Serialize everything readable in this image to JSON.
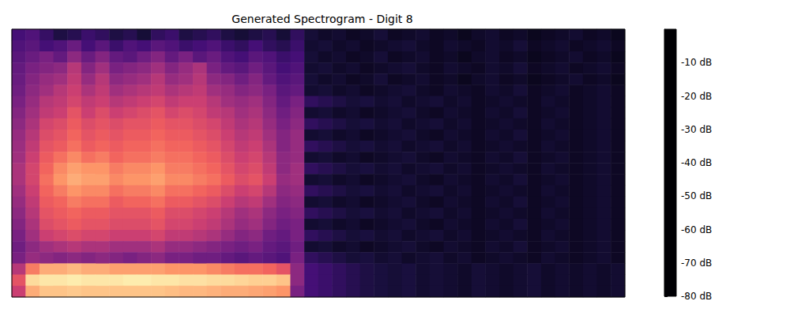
{
  "chart_data": {
    "type": "heatmap",
    "title": "Generated Spectrogram - Digit 8",
    "tick_labels": false,
    "cells": [
      [
        -62,
        -60,
        -65,
        -70,
        -68,
        -64,
        -66,
        -70,
        -68,
        -72,
        -66,
        -64,
        -70,
        -68,
        -66,
        -70,
        -72,
        -70,
        -68,
        -72,
        -66,
        -72,
        -74,
        -73,
        -75,
        -74,
        -72,
        -75,
        -74,
        -73,
        -75,
        -74,
        -76,
        -74,
        -73,
        -75,
        -74,
        -76,
        -75,
        -74,
        -73,
        -75,
        -74,
        -76
      ],
      [
        -60,
        -58,
        -62,
        -60,
        -55,
        -62,
        -58,
        -64,
        -60,
        -62,
        -58,
        -60,
        -64,
        -62,
        -60,
        -64,
        -66,
        -62,
        -66,
        -68,
        -64,
        -73,
        -72,
        -74,
        -73,
        -75,
        -74,
        -73,
        -72,
        -74,
        -75,
        -73,
        -74,
        -75,
        -73,
        -74,
        -72,
        -75,
        -74,
        -73,
        -75,
        -74,
        -73,
        -75
      ],
      [
        -58,
        -55,
        -52,
        -56,
        -48,
        -55,
        -50,
        -56,
        -58,
        -54,
        -50,
        -56,
        -52,
        -58,
        -55,
        -60,
        -62,
        -58,
        -60,
        -64,
        -62,
        -72,
        -74,
        -73,
        -75,
        -74,
        -72,
        -75,
        -74,
        -73,
        -75,
        -74,
        -76,
        -74,
        -73,
        -75,
        -74,
        -76,
        -75,
        -74,
        -73,
        -75,
        -74,
        -76
      ],
      [
        -56,
        -52,
        -50,
        -48,
        -40,
        -50,
        -44,
        -52,
        -50,
        -48,
        -44,
        -50,
        -46,
        -42,
        -52,
        -56,
        -58,
        -54,
        -58,
        -62,
        -60,
        -73,
        -72,
        -74,
        -73,
        -75,
        -74,
        -73,
        -72,
        -74,
        -75,
        -73,
        -74,
        -75,
        -73,
        -74,
        -72,
        -75,
        -74,
        -73,
        -75,
        -74,
        -73,
        -75
      ],
      [
        -55,
        -50,
        -46,
        -44,
        -38,
        -46,
        -40,
        -48,
        -46,
        -44,
        -40,
        -46,
        -44,
        -40,
        -48,
        -50,
        -54,
        -50,
        -56,
        -60,
        -58,
        -72,
        -74,
        -73,
        -75,
        -74,
        -72,
        -75,
        -74,
        -73,
        -75,
        -74,
        -76,
        -74,
        -73,
        -75,
        -74,
        -76,
        -75,
        -74,
        -73,
        -75,
        -74,
        -76
      ],
      [
        -54,
        -48,
        -44,
        -40,
        -36,
        -42,
        -38,
        -44,
        -42,
        -40,
        -38,
        -42,
        -40,
        -38,
        -44,
        -46,
        -50,
        -48,
        -52,
        -58,
        -56,
        -73,
        -72,
        -74,
        -73,
        -75,
        -74,
        -73,
        -72,
        -74,
        -75,
        -73,
        -74,
        -75,
        -73,
        -74,
        -72,
        -75,
        -74,
        -73,
        -75,
        -74,
        -73,
        -75
      ],
      [
        -52,
        -46,
        -40,
        -38,
        -34,
        -38,
        -36,
        -40,
        -38,
        -36,
        -34,
        -38,
        -36,
        -36,
        -40,
        -44,
        -46,
        -44,
        -50,
        -56,
        -52,
        -66,
        -68,
        -70,
        -72,
        -71,
        -73,
        -72,
        -74,
        -73,
        -72,
        -74,
        -73,
        -75,
        -74,
        -73,
        -74,
        -75,
        -73,
        -74,
        -75,
        -74,
        -73,
        -75
      ],
      [
        -50,
        -44,
        -38,
        -36,
        -30,
        -36,
        -32,
        -36,
        -34,
        -32,
        -30,
        -34,
        -32,
        -34,
        -38,
        -40,
        -44,
        -42,
        -48,
        -54,
        -50,
        -73,
        -72,
        -74,
        -73,
        -75,
        -74,
        -73,
        -72,
        -74,
        -75,
        -73,
        -74,
        -75,
        -73,
        -74,
        -72,
        -75,
        -74,
        -73,
        -75,
        -74,
        -73,
        -75
      ],
      [
        -48,
        -42,
        -34,
        -32,
        -28,
        -32,
        -30,
        -32,
        -30,
        -30,
        -28,
        -30,
        -30,
        -32,
        -34,
        -38,
        -42,
        -40,
        -46,
        -52,
        -48,
        -66,
        -68,
        -70,
        -72,
        -71,
        -73,
        -72,
        -74,
        -73,
        -72,
        -74,
        -73,
        -75,
        -74,
        -73,
        -74,
        -75,
        -73,
        -74,
        -75,
        -74,
        -73,
        -75
      ],
      [
        -46,
        -40,
        -32,
        -30,
        -26,
        -30,
        -28,
        -30,
        -28,
        -28,
        -26,
        -28,
        -28,
        -30,
        -32,
        -36,
        -40,
        -38,
        -44,
        -50,
        -46,
        -73,
        -72,
        -74,
        -73,
        -75,
        -74,
        -73,
        -72,
        -74,
        -75,
        -73,
        -74,
        -75,
        -73,
        -74,
        -72,
        -75,
        -74,
        -73,
        -75,
        -74,
        -73,
        -75
      ],
      [
        -45,
        -38,
        -30,
        -28,
        -24,
        -28,
        -26,
        -28,
        -26,
        -26,
        -24,
        -26,
        -26,
        -28,
        -30,
        -34,
        -38,
        -36,
        -42,
        -50,
        -46,
        -66,
        -68,
        -70,
        -72,
        -71,
        -73,
        -72,
        -74,
        -73,
        -72,
        -74,
        -73,
        -75,
        -74,
        -73,
        -74,
        -75,
        -73,
        -74,
        -75,
        -74,
        -73,
        -75
      ],
      [
        -44,
        -36,
        -28,
        -24,
        -20,
        -24,
        -22,
        -26,
        -24,
        -24,
        -22,
        -24,
        -24,
        -26,
        -28,
        -32,
        -36,
        -34,
        -40,
        -48,
        -46,
        -73,
        -72,
        -74,
        -73,
        -75,
        -74,
        -73,
        -72,
        -74,
        -75,
        -73,
        -74,
        -75,
        -73,
        -74,
        -72,
        -75,
        -74,
        -73,
        -75,
        -74,
        -73,
        -75
      ],
      [
        -42,
        -34,
        -26,
        -20,
        -16,
        -18,
        -18,
        -22,
        -20,
        -20,
        -18,
        -22,
        -22,
        -24,
        -26,
        -30,
        -34,
        -32,
        -38,
        -48,
        -44,
        -66,
        -68,
        -70,
        -72,
        -71,
        -73,
        -72,
        -74,
        -73,
        -72,
        -74,
        -73,
        -75,
        -74,
        -73,
        -74,
        -75,
        -73,
        -74,
        -75,
        -74,
        -73,
        -75
      ],
      [
        -42,
        -34,
        -24,
        -18,
        -14,
        -16,
        -16,
        -20,
        -18,
        -18,
        -16,
        -20,
        -20,
        -22,
        -24,
        -28,
        -32,
        -30,
        -36,
        -46,
        -44,
        -73,
        -72,
        -74,
        -73,
        -75,
        -74,
        -73,
        -72,
        -74,
        -75,
        -73,
        -74,
        -75,
        -73,
        -74,
        -72,
        -75,
        -74,
        -73,
        -75,
        -74,
        -73,
        -75
      ],
      [
        -44,
        -36,
        -26,
        -22,
        -18,
        -20,
        -20,
        -24,
        -22,
        -22,
        -20,
        -24,
        -24,
        -26,
        -28,
        -32,
        -36,
        -34,
        -40,
        -48,
        -46,
        -66,
        -68,
        -70,
        -72,
        -71,
        -73,
        -72,
        -74,
        -73,
        -72,
        -74,
        -73,
        -75,
        -74,
        -73,
        -74,
        -75,
        -73,
        -74,
        -75,
        -74,
        -73,
        -75
      ],
      [
        -46,
        -38,
        -28,
        -26,
        -22,
        -24,
        -24,
        -28,
        -26,
        -26,
        -24,
        -28,
        -28,
        -30,
        -32,
        -36,
        -40,
        -38,
        -44,
        -50,
        -48,
        -73,
        -72,
        -74,
        -73,
        -75,
        -74,
        -73,
        -72,
        -74,
        -75,
        -73,
        -74,
        -75,
        -73,
        -74,
        -72,
        -75,
        -74,
        -73,
        -75,
        -74,
        -73,
        -75
      ],
      [
        -48,
        -40,
        -30,
        -28,
        -26,
        -28,
        -28,
        -30,
        -30,
        -30,
        -28,
        -32,
        -32,
        -34,
        -36,
        -40,
        -44,
        -42,
        -48,
        -52,
        -50,
        -66,
        -68,
        -70,
        -72,
        -71,
        -73,
        -72,
        -74,
        -73,
        -72,
        -74,
        -73,
        -75,
        -74,
        -73,
        -74,
        -75,
        -73,
        -74,
        -75,
        -74,
        -73,
        -75
      ],
      [
        -50,
        -42,
        -32,
        -30,
        -28,
        -30,
        -30,
        -32,
        -32,
        -32,
        -30,
        -34,
        -34,
        -36,
        -38,
        -42,
        -46,
        -44,
        -50,
        -54,
        -52,
        -73,
        -72,
        -74,
        -73,
        -75,
        -74,
        -73,
        -72,
        -74,
        -75,
        -73,
        -74,
        -75,
        -73,
        -74,
        -72,
        -75,
        -74,
        -73,
        -75,
        -74,
        -73,
        -75
      ],
      [
        -52,
        -44,
        -36,
        -34,
        -32,
        -34,
        -34,
        -36,
        -36,
        -36,
        -34,
        -38,
        -38,
        -40,
        -42,
        -46,
        -50,
        -48,
        -54,
        -56,
        -52,
        -66,
        -68,
        -70,
        -72,
        -71,
        -73,
        -72,
        -74,
        -73,
        -72,
        -74,
        -73,
        -75,
        -74,
        -73,
        -74,
        -75,
        -73,
        -74,
        -75,
        -74,
        -73,
        -75
      ],
      [
        -54,
        -48,
        -44,
        -42,
        -40,
        -42,
        -42,
        -44,
        -44,
        -44,
        -42,
        -46,
        -46,
        -48,
        -50,
        -52,
        -54,
        -52,
        -56,
        -58,
        -54,
        -73,
        -72,
        -74,
        -73,
        -75,
        -74,
        -73,
        -72,
        -74,
        -75,
        -73,
        -74,
        -75,
        -73,
        -74,
        -72,
        -75,
        -74,
        -73,
        -75,
        -74,
        -73,
        -75
      ],
      [
        -52,
        -46,
        -48,
        -50,
        -48,
        -50,
        -48,
        -50,
        -52,
        -50,
        -48,
        -52,
        -52,
        -54,
        -54,
        -56,
        -58,
        -56,
        -58,
        -60,
        -52,
        -66,
        -68,
        -70,
        -72,
        -71,
        -73,
        -72,
        -74,
        -73,
        -72,
        -74,
        -73,
        -75,
        -74,
        -73,
        -74,
        -75,
        -73,
        -74,
        -75,
        -74,
        -73,
        -75
      ],
      [
        -40,
        -22,
        -14,
        -14,
        -12,
        -14,
        -14,
        -16,
        -16,
        -16,
        -16,
        -18,
        -18,
        -18,
        -20,
        -22,
        -24,
        -24,
        -26,
        -30,
        -48,
        -62,
        -64,
        -66,
        -68,
        -70,
        -71,
        -72,
        -71,
        -73,
        -72,
        -73,
        -74,
        -72,
        -73,
        -74,
        -73,
        -72,
        -74,
        -73,
        -74,
        -73,
        -74,
        -73
      ],
      [
        -30,
        -6,
        -4,
        -4,
        -3,
        -4,
        -4,
        -4,
        -3,
        -3,
        -4,
        -4,
        -5,
        -5,
        -6,
        -6,
        -7,
        -8,
        -8,
        -10,
        -48,
        -62,
        -64,
        -66,
        -68,
        -70,
        -71,
        -72,
        -71,
        -73,
        -72,
        -73,
        -74,
        -72,
        -73,
        -74,
        -73,
        -72,
        -74,
        -73,
        -74,
        -73,
        -74,
        -73
      ],
      [
        -36,
        -14,
        -10,
        -10,
        -9,
        -10,
        -10,
        -10,
        -10,
        -10,
        -10,
        -11,
        -12,
        -12,
        -13,
        -14,
        -14,
        -15,
        -16,
        -18,
        -52,
        -62,
        -64,
        -66,
        -68,
        -70,
        -71,
        -72,
        -71,
        -73,
        -72,
        -73,
        -74,
        -72,
        -73,
        -74,
        -73,
        -72,
        -74,
        -73,
        -74,
        -73,
        -74,
        -73
      ]
    ],
    "colorbar": {
      "range": [
        -80,
        0
      ],
      "ticks": [
        {
          "value": -10,
          "label": "-10 dB"
        },
        {
          "value": -20,
          "label": "-20 dB"
        },
        {
          "value": -30,
          "label": "-30 dB"
        },
        {
          "value": -40,
          "label": "-40 dB"
        },
        {
          "value": -50,
          "label": "-50 dB"
        },
        {
          "value": -60,
          "label": "-60 dB"
        },
        {
          "value": -70,
          "label": "-70 dB"
        },
        {
          "value": -80,
          "label": "-80 dB"
        }
      ]
    }
  }
}
